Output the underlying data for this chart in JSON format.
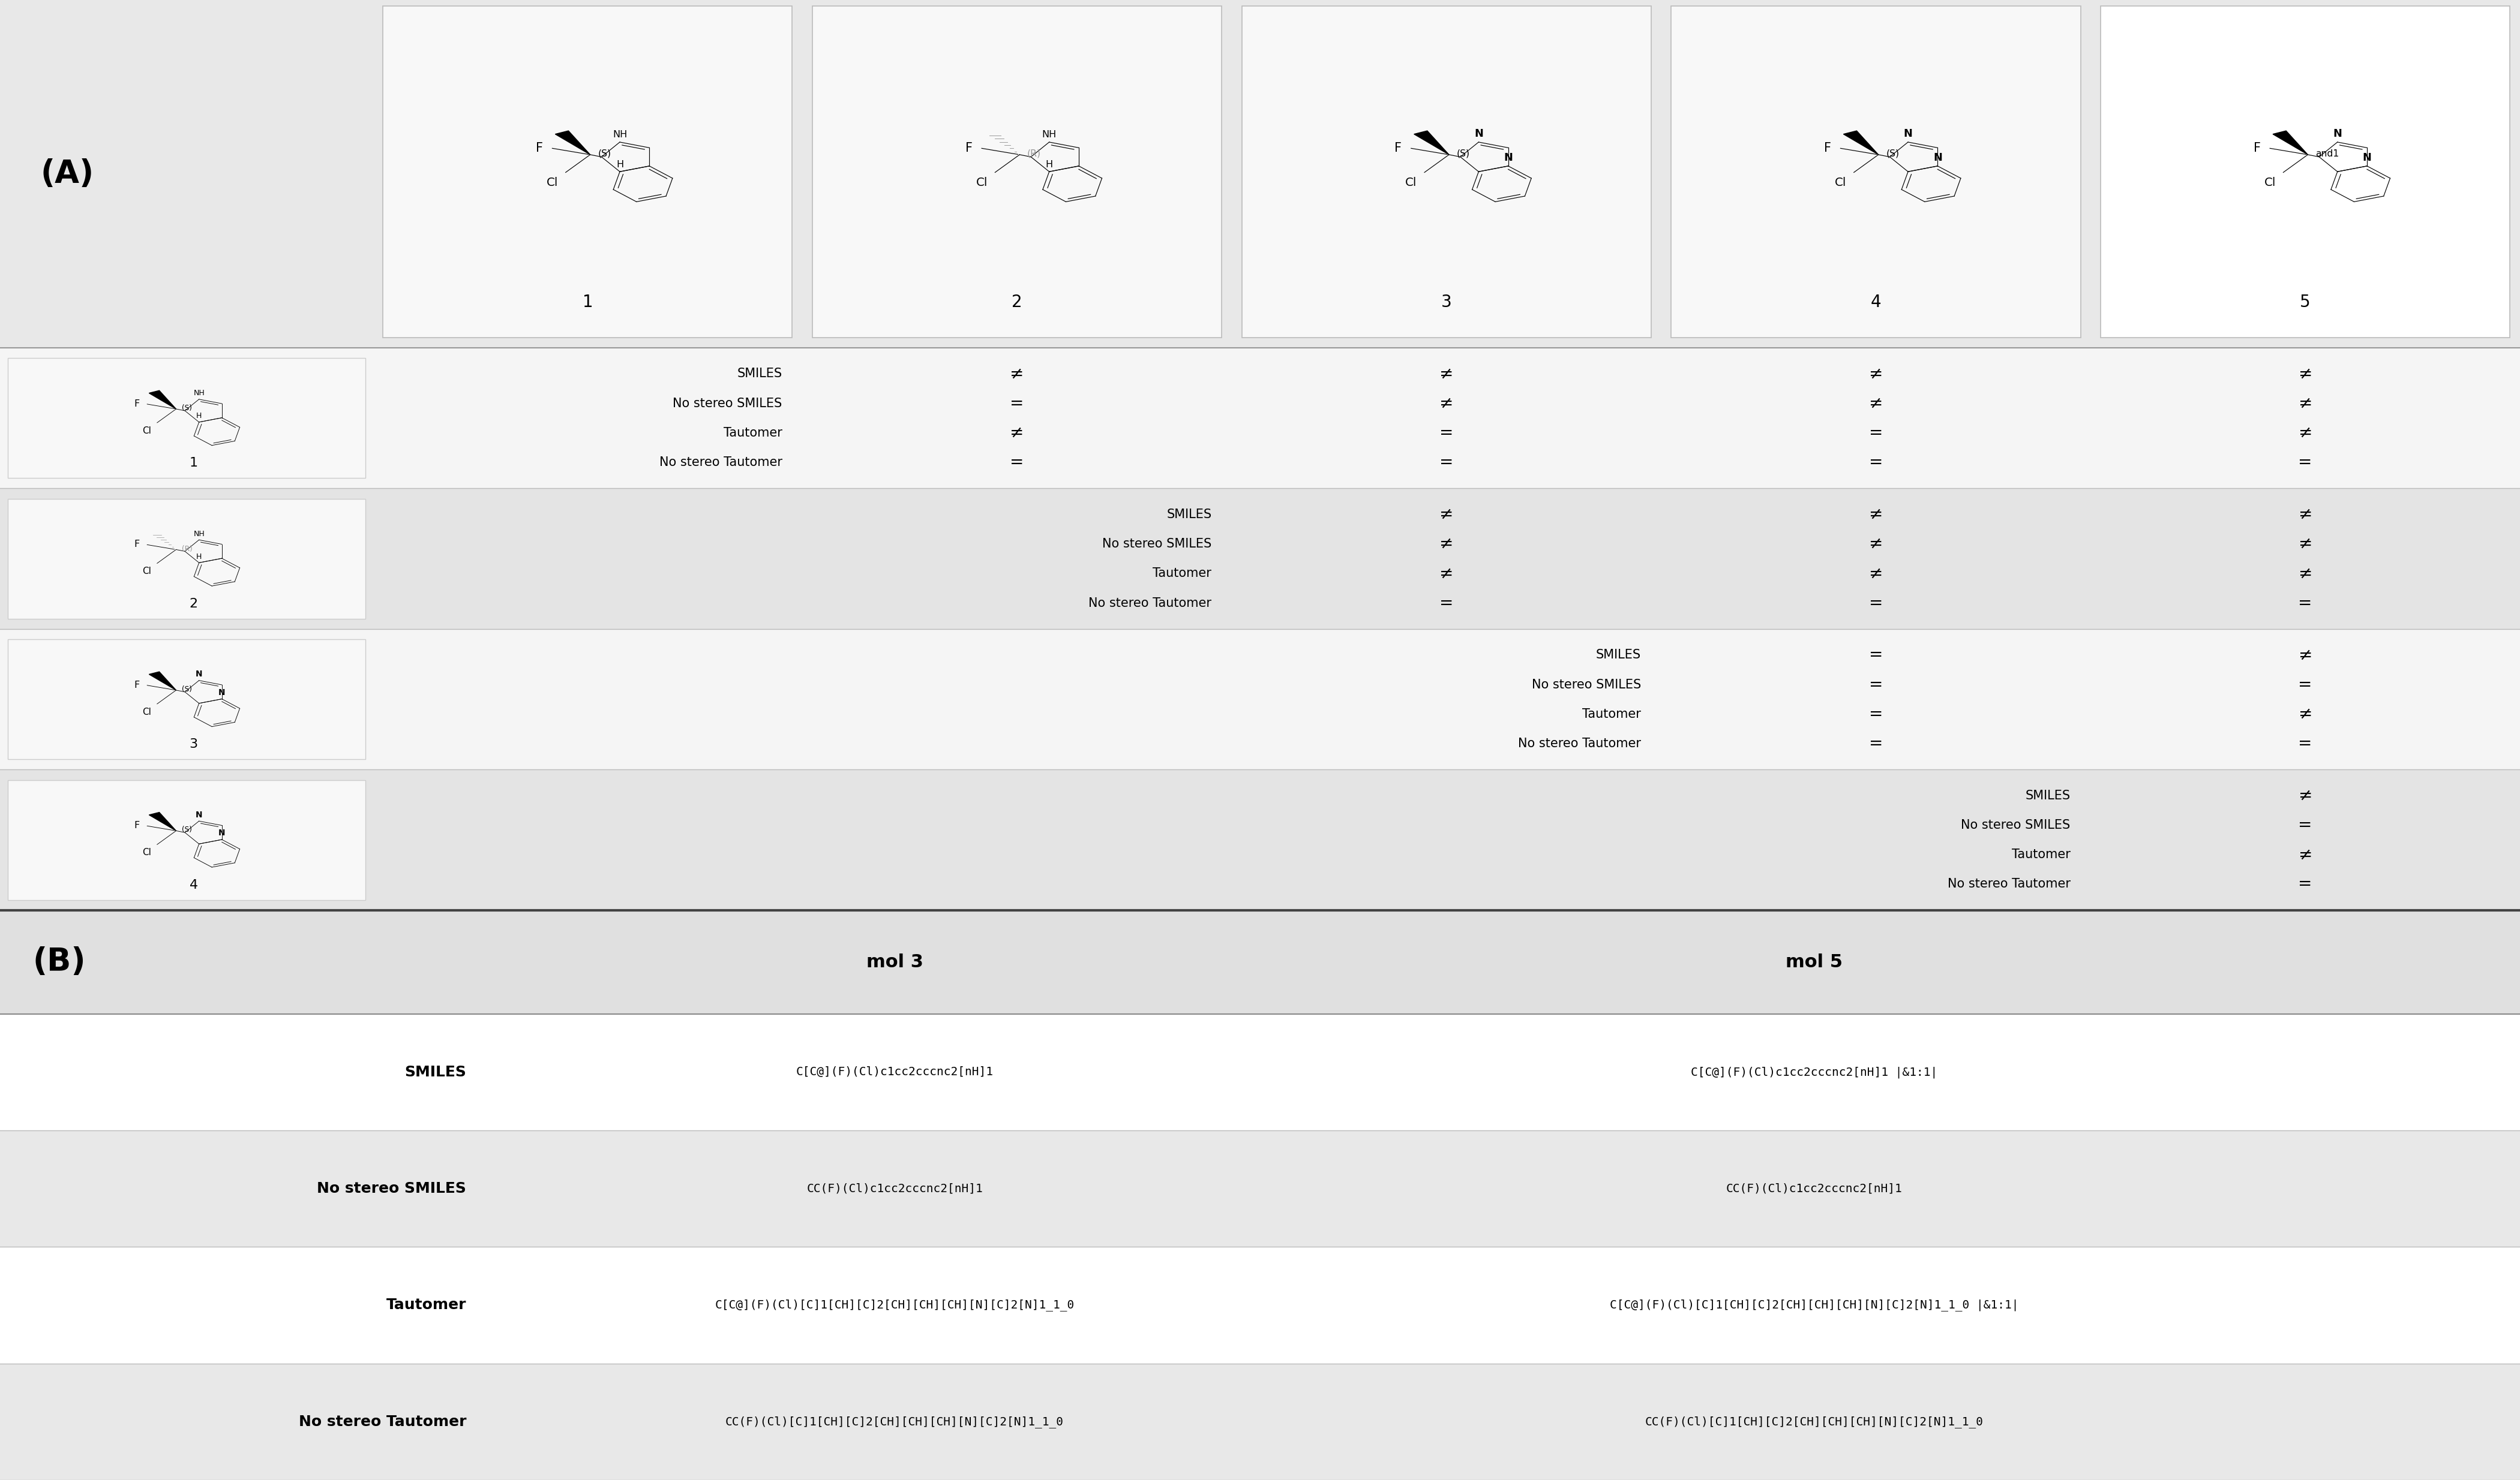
{
  "fig_width": 42.0,
  "fig_height": 24.68,
  "bg_color": "#ffffff",
  "panel_a_bg": "#e8e8e8",
  "row_bg_odd": "#f5f5f5",
  "row_bg_even": "#e4e4e4",
  "mol_box_bg": "#f8f8f8",
  "mol5_box_bg": "#ffffff",
  "header_label_A": "(A)",
  "header_label_B": "(B)",
  "mol_labels_header": [
    "1",
    "2",
    "3",
    "4",
    "5"
  ],
  "row_labels": [
    "1",
    "2",
    "3",
    "4"
  ],
  "comparison_labels": [
    "SMILES",
    "No stereo SMILES",
    "Tautomer",
    "No stereo Tautomer"
  ],
  "mol3_col": "mol 3",
  "mol5_col": "mol 5",
  "mol3_smiles": "C[C@](F)(Cl)c1cc2cccnc2[nH]1",
  "mol5_smiles": "C[C@](F)(Cl)c1cc2cccnc2[nH]1 |&1:1|",
  "mol3_no_stereo_smiles": "CC(F)(Cl)c1cc2cccnc2[nH]1",
  "mol5_no_stereo_smiles": "CC(F)(Cl)c1cc2cccnc2[nH]1",
  "mol3_tautomer": "C[C@](F)(Cl)[C]1[CH][C]2[CH][CH][CH][N][C]2[N]1_1_0",
  "mol5_tautomer": "C[C@](F)(Cl)[C]1[CH][C]2[CH][CH][CH][N][C]2[N]1_1_0 |&1:1|",
  "mol3_no_stereo_tautomer": "CC(F)(Cl)[C]1[CH][C]2[CH][CH][CH][N][C]2[N]1_1_0",
  "mol5_no_stereo_tautomer": "CC(F)(Cl)[C]1[CH][C]2[CH][CH][CH][N][C]2[N]1_1_0",
  "neq": "≠",
  "eq": "=",
  "row1_vs2": [
    "≠",
    "=",
    "≠",
    "="
  ],
  "row1_vs3": [
    "≠",
    "≠",
    "=",
    "="
  ],
  "row1_vs4": [
    "≠",
    "≠",
    "=",
    "="
  ],
  "row1_vs5": [
    "≠",
    "≠",
    "≠",
    "="
  ],
  "row2_vs3": [
    "≠",
    "≠",
    "≠",
    "="
  ],
  "row2_vs4": [
    "≠",
    "≠",
    "≠",
    "="
  ],
  "row2_vs5": [
    "≠",
    "≠",
    "≠",
    "="
  ],
  "row3_vs4": [
    "=",
    "=",
    "=",
    "="
  ],
  "row3_vs5": [
    "≠",
    "=",
    "≠",
    "="
  ],
  "row4_vs5": [
    "≠",
    "=",
    "≠",
    "="
  ],
  "stereo_header": [
    "(S)",
    "(R)",
    "(S)",
    "(S)",
    "and1"
  ],
  "stereo_rows": [
    "(S)",
    "(R)",
    "(S)",
    "(S)"
  ],
  "stereo_color_R": "#999999",
  "stereo_color_S": "#000000"
}
